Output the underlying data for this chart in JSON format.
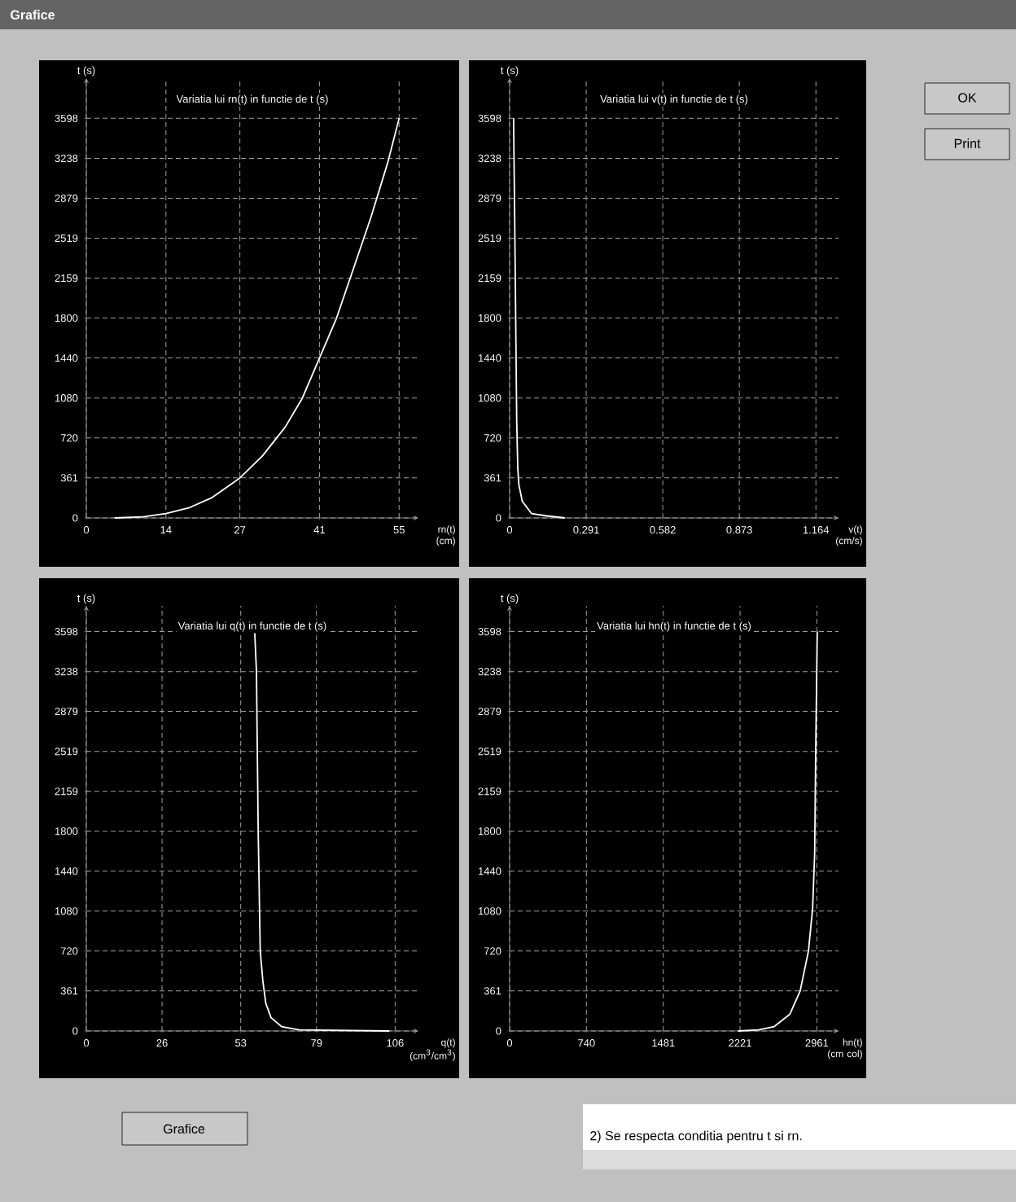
{
  "chart_data": [
    {
      "type": "line",
      "title": "Variatia lui rn(t) in functie de t (s)",
      "xlabel": "rn(t) (cm)",
      "ylabel": "t (s)",
      "grid": true,
      "xlim": [
        0,
        58.4
      ],
      "xticks": [
        0,
        14,
        27,
        41,
        55
      ],
      "ylim": [
        0,
        3960
      ],
      "yticks": [
        0,
        361,
        720,
        1080,
        1440,
        1800,
        2159,
        2519,
        2879,
        3238,
        3598
      ],
      "series": [
        {
          "color": "#ffffff",
          "x": [
            5,
            10,
            14,
            18,
            22,
            27,
            31,
            35,
            38,
            41,
            44,
            47,
            50,
            53,
            55
          ],
          "values": [
            0,
            10,
            40,
            90,
            180,
            360,
            560,
            820,
            1080,
            1440,
            1800,
            2250,
            2700,
            3200,
            3598
          ]
        }
      ]
    },
    {
      "type": "line",
      "title": "Variatia lui v(t) in functie de t (s)",
      "xlabel": "v(t) (cm/s)",
      "ylabel": "t (s)",
      "grid": true,
      "xlim": [
        0,
        1.25
      ],
      "xticks": [
        0,
        0.291,
        0.582,
        0.873,
        1.164
      ],
      "ylim": [
        0,
        3960
      ],
      "yticks": [
        0,
        361,
        720,
        1080,
        1440,
        1800,
        2159,
        2519,
        2879,
        3238,
        3598
      ],
      "series": [
        {
          "color": "#ffffff",
          "x": [
            0.21,
            0.135,
            0.083,
            0.048,
            0.035,
            0.031,
            0.027,
            0.02,
            0.015
          ],
          "values": [
            0,
            20,
            40,
            150,
            300,
            450,
            860,
            2520,
            3598
          ]
        }
      ]
    },
    {
      "type": "line",
      "title": "Variatia lui q(t) in functie de t (s)",
      "xlabel": "q(t) (cm$^{3}$/cm$^{3}$)",
      "ylabel": "t (s)",
      "grid": true,
      "xlim": [
        0,
        114
      ],
      "xticks": [
        0,
        26,
        53,
        79,
        106
      ],
      "ylim": [
        0,
        3830
      ],
      "yticks": [
        0,
        361,
        720,
        1080,
        1440,
        1800,
        2159,
        2519,
        2879,
        3238,
        3598
      ],
      "series": [
        {
          "color": "#ffffff",
          "x": [
            104,
            73,
            67,
            63.4,
            61.6,
            60.6,
            59.7,
            59,
            58.4,
            57.8
          ],
          "values": [
            0,
            10,
            40,
            120,
            250,
            450,
            720,
            1800,
            3240,
            3598
          ]
        }
      ]
    },
    {
      "type": "line",
      "title": "Variatia lui hn(t) in functie de t (s)",
      "xlabel": "hn(t) (cm col)",
      "ylabel": "t (s)",
      "grid": true,
      "xlim": [
        0,
        3170
      ],
      "xticks": [
        0,
        740,
        1481,
        2221,
        2961
      ],
      "ylim": [
        0,
        3830
      ],
      "yticks": [
        0,
        361,
        720,
        1080,
        1440,
        1800,
        2159,
        2519,
        2879,
        3238,
        3598
      ],
      "series": [
        {
          "color": "#ffffff",
          "x": [
            2200,
            2400,
            2550,
            2700,
            2800,
            2880,
            2920,
            2940,
            2950,
            2958,
            2965
          ],
          "values": [
            0,
            10,
            40,
            150,
            360,
            720,
            1100,
            1600,
            2520,
            3100,
            3598
          ]
        }
      ]
    },
    {
      "type": "other",
      "annotations": [
        "Grafice",
        "OK",
        "Print",
        "Grafice",
        "2) Se respecta conditia pentru t si rn."
      ]
    }
  ]
}
